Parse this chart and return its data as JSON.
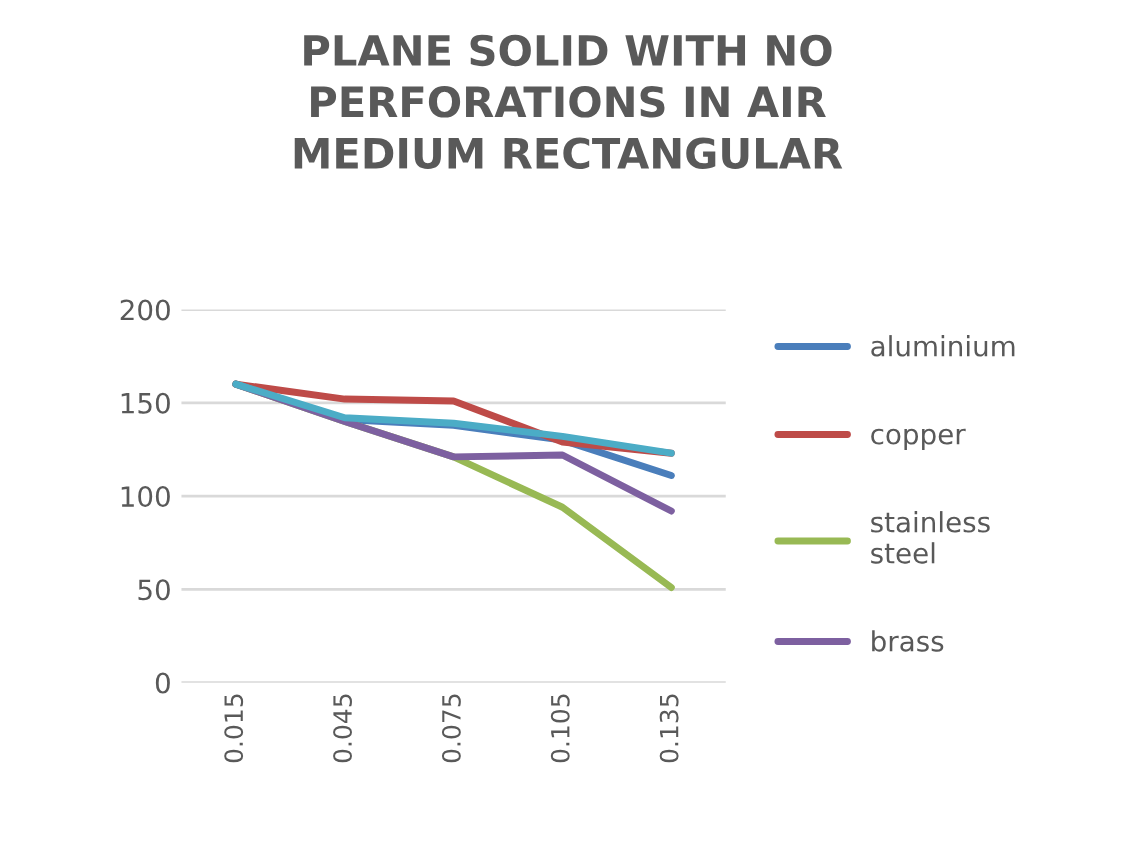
{
  "chart_data": {
    "type": "line",
    "title": "PLANE SOLID WITH NO\nPERFORATIONS IN AIR\nMEDIUM RECTANGULAR",
    "categories": [
      "0.015",
      "0.045",
      "0.075",
      "0.105",
      "0.135"
    ],
    "series": [
      {
        "name": "aluminium",
        "color": "#4a7ebb",
        "values": [
          160,
          141,
          138,
          130,
          111
        ]
      },
      {
        "name": "copper",
        "color": "#be4b48",
        "values": [
          160,
          152,
          151,
          129,
          123
        ]
      },
      {
        "name": "stainless\nsteel",
        "color": "#98b954",
        "values": [
          160,
          140,
          121,
          94,
          51
        ]
      },
      {
        "name": "brass",
        "color": "#7d60a0",
        "values": [
          160,
          140,
          121,
          122,
          92
        ]
      },
      {
        "color": "#4bacc6",
        "values": [
          160,
          142,
          139,
          132,
          123
        ]
      }
    ],
    "ylim": [
      0,
      200
    ],
    "yticks": [
      0,
      50,
      100,
      150,
      200
    ],
    "grid": "y",
    "legend": "right",
    "marker": "none"
  }
}
